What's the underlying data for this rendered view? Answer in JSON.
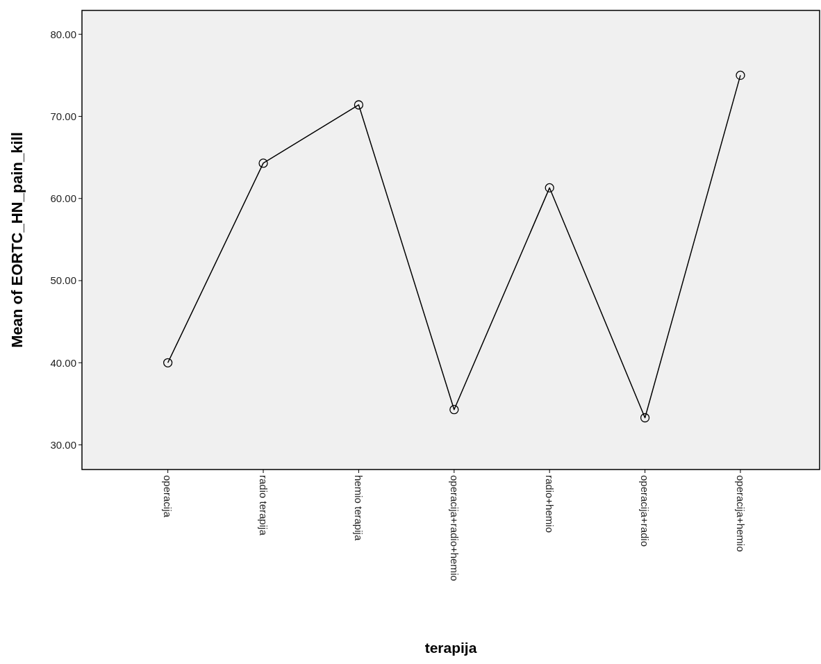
{
  "chart_data": {
    "type": "line",
    "xlabel": "terapija",
    "ylabel": "Mean of EORTC_HN_pain_kill",
    "categories": [
      "operacija",
      "radio terapija",
      "hemio terapija",
      "operacija+radio+hemio",
      "radio+hemio",
      "operacija+radio",
      "operacija+hemio"
    ],
    "series": [
      {
        "color": "#000000",
        "values": [
          40.0,
          64.3,
          71.4,
          34.3,
          61.3,
          33.3,
          75.0
        ]
      }
    ],
    "ylim": [
      27.0,
      82.9
    ],
    "yticks": [
      {
        "value": 30,
        "label": "30.00"
      },
      {
        "value": 40,
        "label": "40.00"
      },
      {
        "value": 50,
        "label": "50.00"
      },
      {
        "value": 60,
        "label": "60.00"
      },
      {
        "value": 70,
        "label": "70.00"
      },
      {
        "value": 80,
        "label": "80.00"
      }
    ],
    "grid": false,
    "marker": "circle",
    "line_style": "solid"
  }
}
